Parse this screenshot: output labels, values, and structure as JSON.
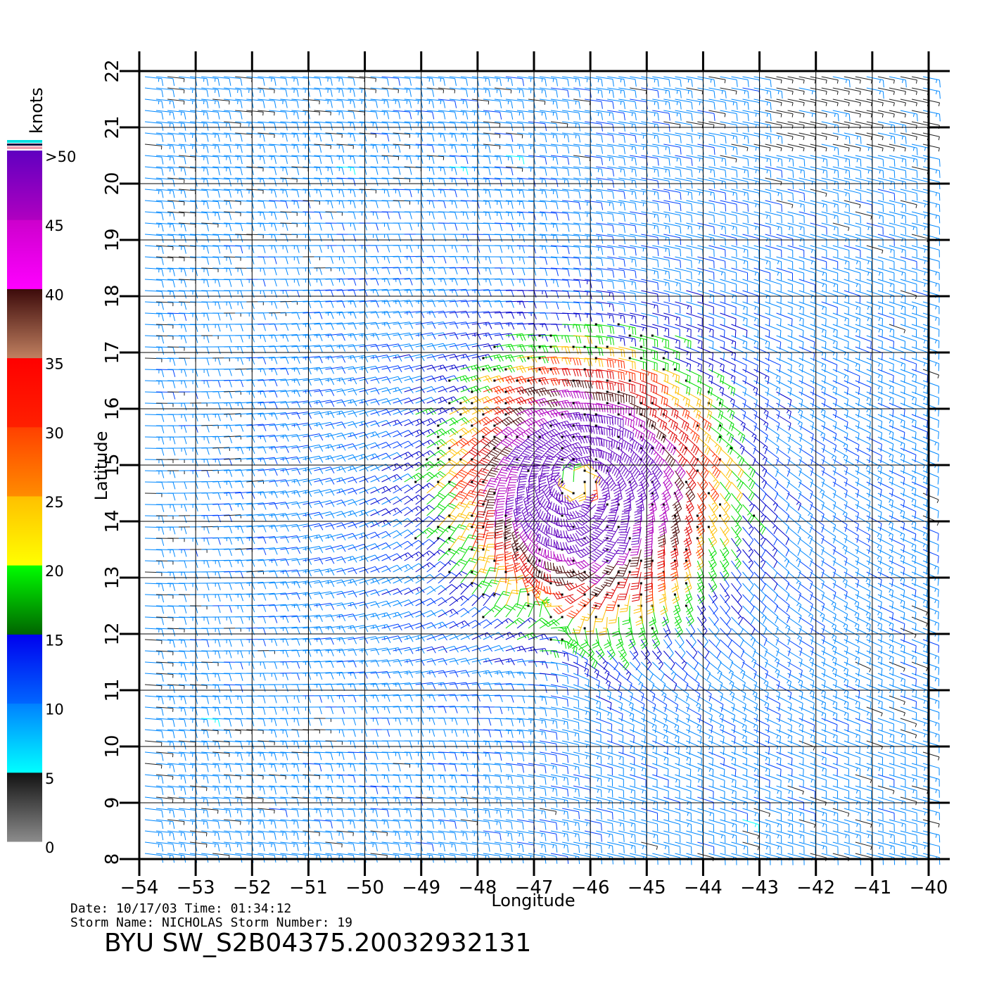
{
  "chart_data": {
    "type": "wind-barb map",
    "xlabel": "Longitude",
    "ylabel": "Latitude",
    "xlim": [
      -54,
      -40
    ],
    "ylim": [
      8,
      22
    ],
    "x_ticks": [
      "−54",
      "−53",
      "−52",
      "−51",
      "−50",
      "−49",
      "−48",
      "−47",
      "−46",
      "−45",
      "−44",
      "−43",
      "−42",
      "−41",
      "−40"
    ],
    "y_ticks": [
      "8",
      "9",
      "10",
      "11",
      "12",
      "13",
      "14",
      "15",
      "16",
      "17",
      "18",
      "19",
      "20",
      "21",
      "22"
    ],
    "grid": true,
    "colorbar": {
      "unit": "knots",
      "labels": [
        ">50",
        "45",
        "40",
        "35",
        "30",
        "25",
        "20",
        "15",
        "10",
        "5",
        "0"
      ],
      "bands": [
        {
          "min": 0,
          "max": 5,
          "from": "#8c8c8c",
          "to": "#111111"
        },
        {
          "min": 5,
          "max": 10,
          "from": "#00ffff",
          "to": "#0080ff"
        },
        {
          "min": 10,
          "max": 15,
          "from": "#0066ff",
          "to": "#0000ee"
        },
        {
          "min": 15,
          "max": 20,
          "from": "#006400",
          "to": "#00ff00"
        },
        {
          "min": 20,
          "max": 25,
          "from": "#ffff00",
          "to": "#ffc000"
        },
        {
          "min": 25,
          "max": 30,
          "from": "#ff8c00",
          "to": "#ff4000"
        },
        {
          "min": 30,
          "max": 35,
          "from": "#ff2000",
          "to": "#ff0000"
        },
        {
          "min": 35,
          "max": 40,
          "from": "#c08060",
          "to": "#3c0a0a"
        },
        {
          "min": 40,
          "max": 45,
          "from": "#ff00ff",
          "to": "#cc00cc"
        },
        {
          "min": 45,
          "max": 50,
          "from": "#b000c0",
          "to": "#6000c0"
        }
      ]
    },
    "storm_center": {
      "lon": -46.2,
      "lat": 14.7
    },
    "wind_field_note_values": {
      "max_speed_knots": 45,
      "peak_zone_lat": [
        14,
        16
      ],
      "peak_zone_lon": [
        -47,
        -45
      ]
    }
  },
  "info": {
    "date_line": "Date: 10/17/03   Time: 01:34:12",
    "storm_line": "Storm Name: NICHOLAS   Storm Number: 19",
    "file_title": "BYU SW_S2B04375.20032932131"
  }
}
